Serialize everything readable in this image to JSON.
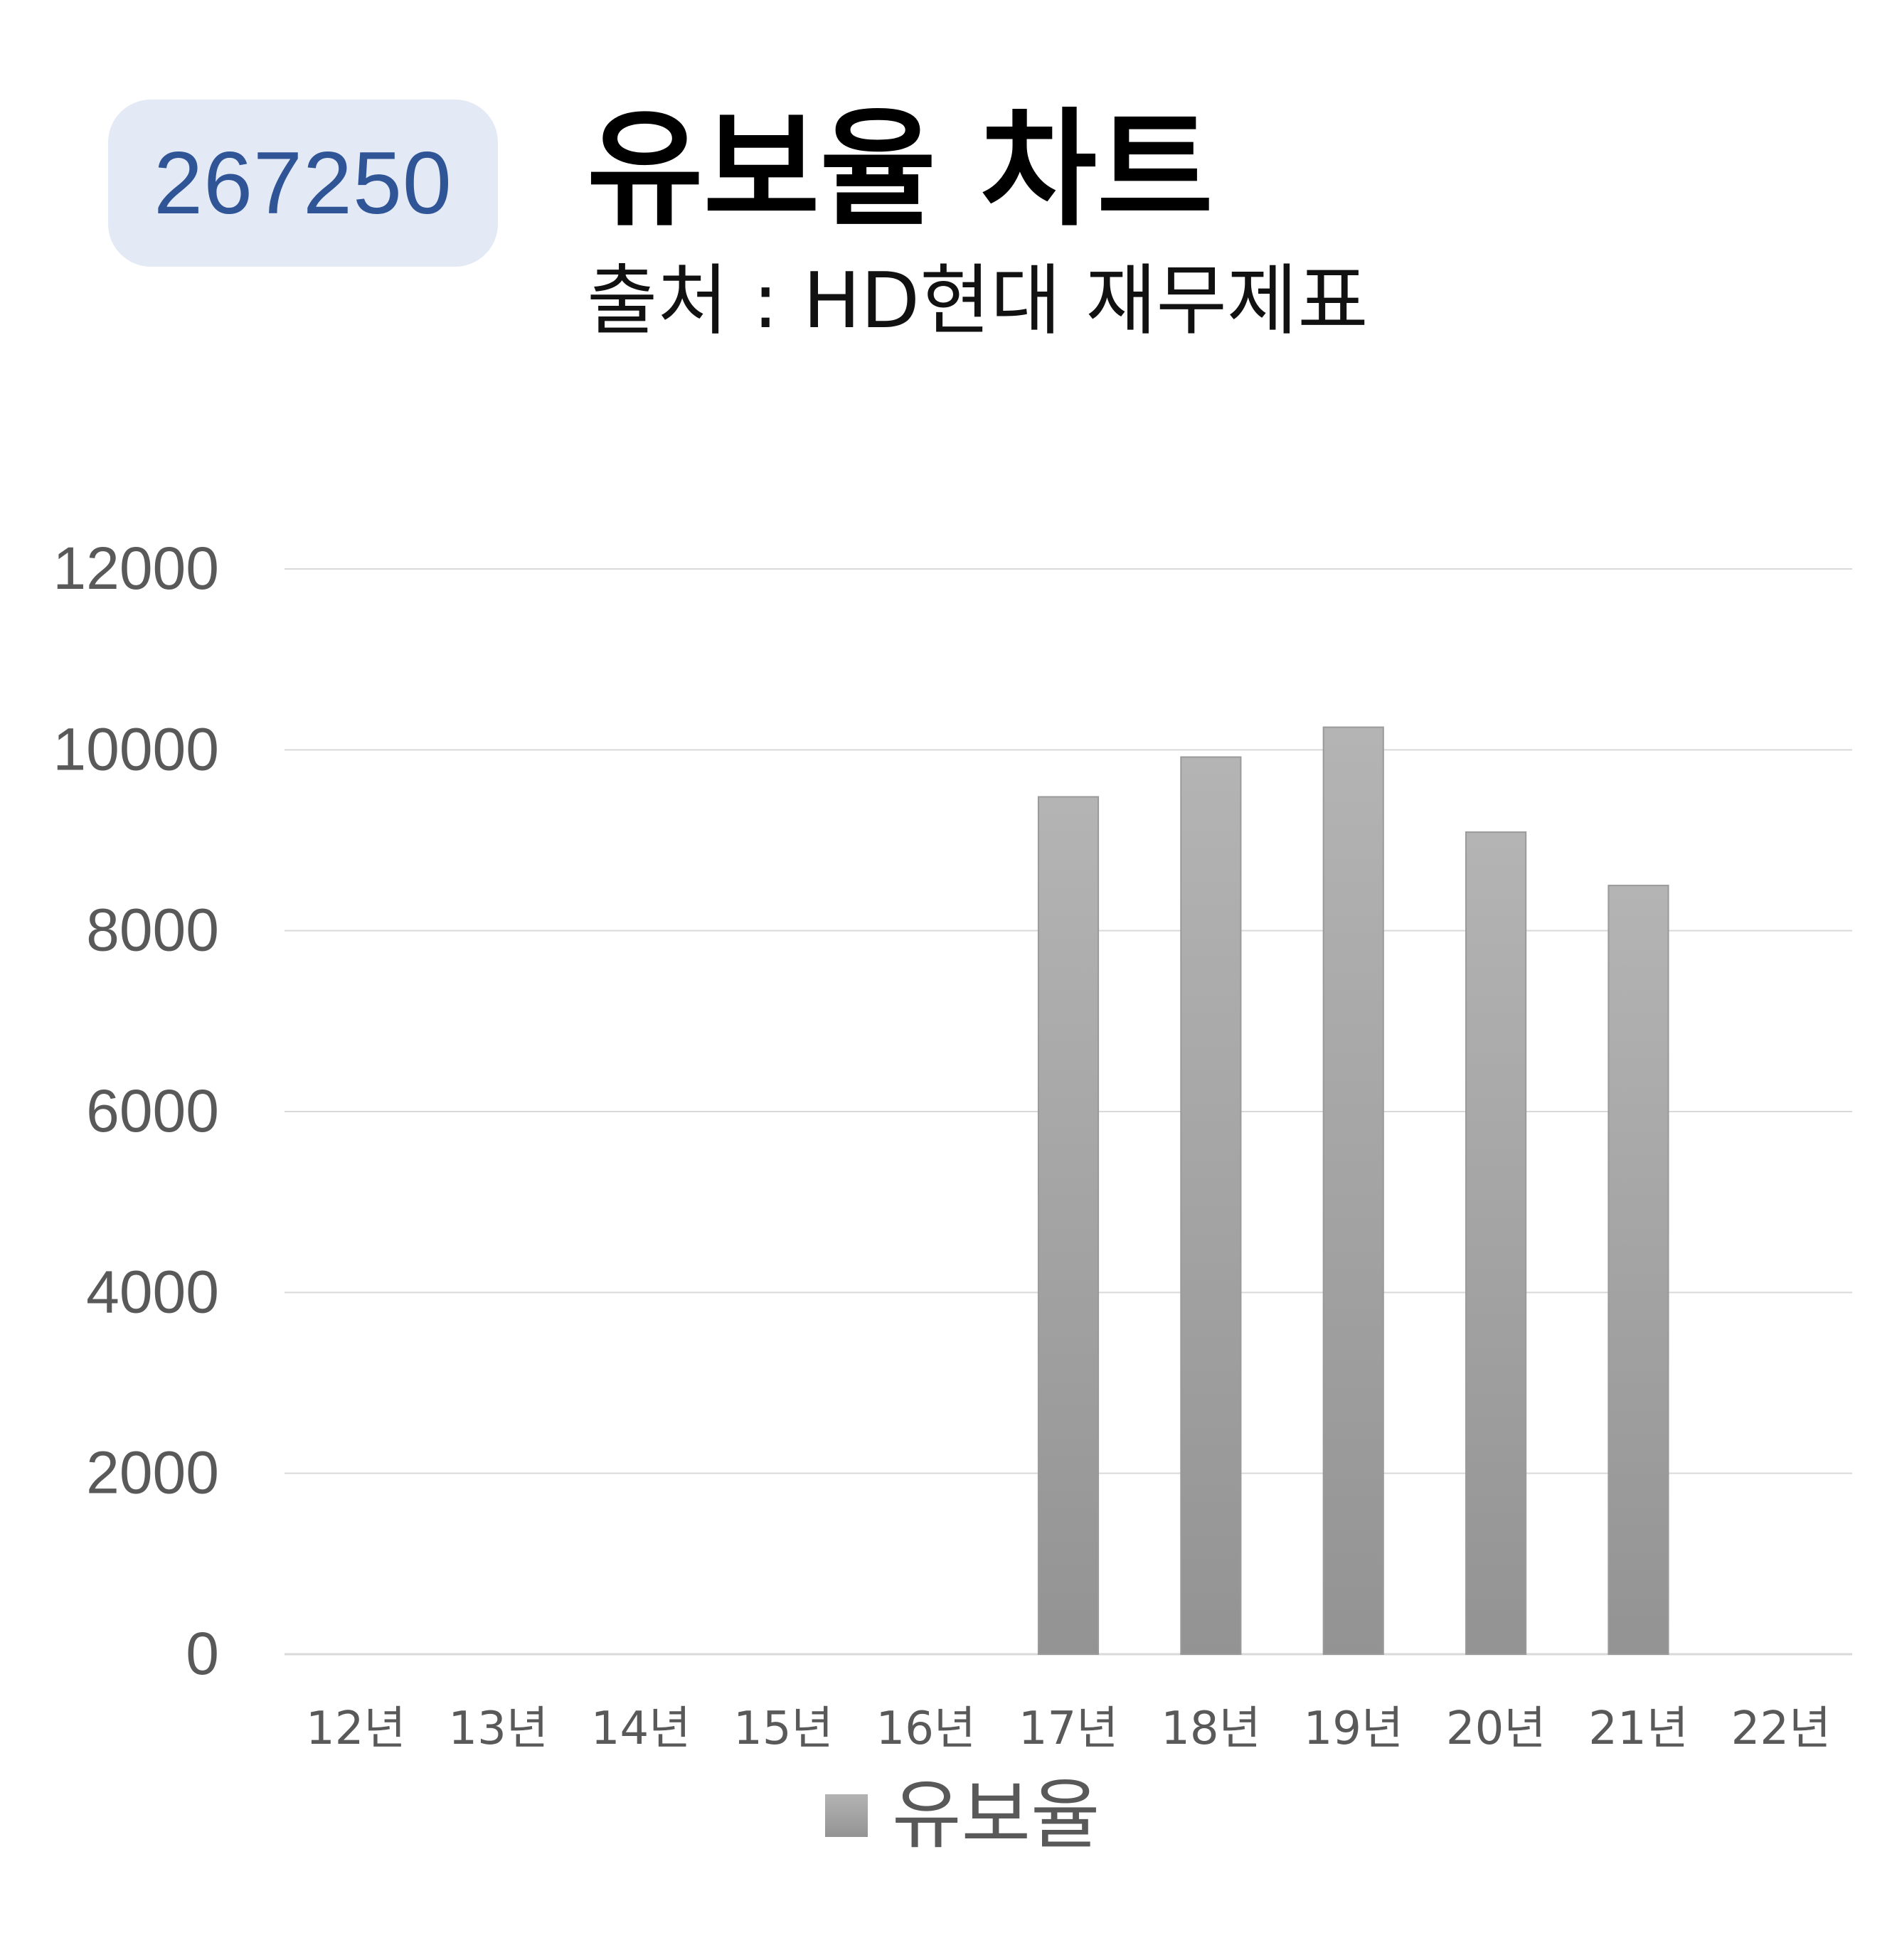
{
  "badge": {
    "code": "267250"
  },
  "header": {
    "title": "유보율 차트",
    "subtitle": "출처 : HD현대 재무제표"
  },
  "colors": {
    "bar_top": "#b4b4b4",
    "bar_bottom": "#939393",
    "grid": "#d9d9d9",
    "axis_text": "#595959",
    "badge_bg": "#e3e9f5",
    "badge_text": "#2f5597"
  },
  "chart_data": {
    "type": "bar",
    "title": "유보율 차트",
    "categories": [
      "12년",
      "13년",
      "14년",
      "15년",
      "16년",
      "17년",
      "18년",
      "19년",
      "20년",
      "21년",
      "22년"
    ],
    "series": [
      {
        "name": "유보율",
        "values": [
          null,
          null,
          null,
          null,
          null,
          9480,
          9920,
          10250,
          9090,
          8500,
          null
        ]
      }
    ],
    "ylim": [
      0,
      12000
    ],
    "yticks": [
      0,
      2000,
      4000,
      6000,
      8000,
      10000,
      12000
    ],
    "grid": true,
    "legend_position": "bottom"
  }
}
